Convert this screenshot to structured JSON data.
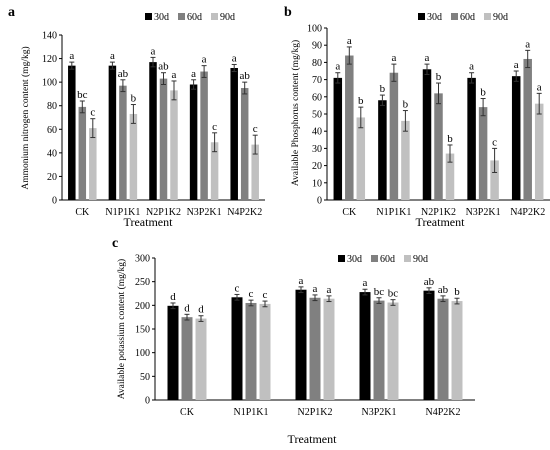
{
  "colors": {
    "30d": "#000000",
    "60d": "#808080",
    "90d": "#c0c0c0"
  },
  "chart_data": [
    {
      "type": "bar",
      "panel_label": "a",
      "categories": [
        "CK",
        "N1P1K1",
        "N2P1K2",
        "N3P2K1",
        "N4P2K2"
      ],
      "series": [
        {
          "name": "30d",
          "values": [
            114,
            114,
            117,
            98,
            112
          ],
          "errors": [
            3,
            3,
            4,
            4,
            3
          ],
          "letters": [
            "a",
            "a",
            "a",
            "a",
            "a"
          ]
        },
        {
          "name": "60d",
          "values": [
            79,
            97,
            103,
            109,
            95
          ],
          "errors": [
            5,
            5,
            5,
            5,
            5
          ],
          "letters": [
            "bc",
            "ab",
            "ab",
            "a",
            "ab"
          ]
        },
        {
          "name": "90d",
          "values": [
            61,
            73,
            93,
            49,
            47
          ],
          "errors": [
            8,
            8,
            8,
            8,
            8
          ],
          "letters": [
            "c",
            "b",
            "a",
            "c",
            "c"
          ]
        }
      ],
      "xlabel": "Treatment",
      "ylabel": "Ammonium nitrogen content (mg/kg)",
      "ylim": [
        0,
        140
      ],
      "yticks": [
        0,
        20,
        40,
        60,
        80,
        100,
        120,
        140
      ],
      "legend": "top-right",
      "grid": false
    },
    {
      "type": "bar",
      "panel_label": "b",
      "categories": [
        "CK",
        "N1P1K1",
        "N2P1K2",
        "N3P2K1",
        "N4P2K2"
      ],
      "series": [
        {
          "name": "30d",
          "values": [
            71,
            58,
            76,
            71,
            72
          ],
          "errors": [
            3,
            3,
            3,
            3,
            3
          ],
          "letters": [
            "a",
            "b",
            "a",
            "a",
            "a"
          ]
        },
        {
          "name": "60d",
          "values": [
            84,
            74,
            62,
            54,
            82
          ],
          "errors": [
            5,
            5,
            6,
            5,
            5
          ],
          "letters": [
            "a",
            "a",
            "b",
            "b",
            "a"
          ]
        },
        {
          "name": "90d",
          "values": [
            48,
            46,
            27,
            23,
            56
          ],
          "errors": [
            6,
            6,
            5,
            7,
            6
          ],
          "letters": [
            "b",
            "b",
            "b",
            "c",
            "a"
          ]
        }
      ],
      "xlabel": "Treatment",
      "ylabel": "Available Phosphorus content (mg/kg)",
      "ylim": [
        0,
        100
      ],
      "yticks": [
        0,
        10,
        20,
        30,
        40,
        50,
        60,
        70,
        80,
        90,
        100
      ],
      "legend": "top-right",
      "grid": false
    },
    {
      "type": "bar",
      "panel_label": "c",
      "categories": [
        "CK",
        "N1P1K1",
        "N2P1K2",
        "N3P2K1",
        "N4P2K2"
      ],
      "series": [
        {
          "name": "30d",
          "values": [
            199,
            217,
            233,
            228,
            231
          ],
          "errors": [
            6,
            6,
            6,
            6,
            6
          ],
          "letters": [
            "d",
            "c",
            "a",
            "a",
            "ab"
          ]
        },
        {
          "name": "60d",
          "values": [
            175,
            205,
            216,
            210,
            214
          ],
          "errors": [
            6,
            6,
            6,
            6,
            6
          ],
          "letters": [
            "d",
            "c",
            "a",
            "bc",
            "ab"
          ]
        },
        {
          "name": "90d",
          "values": [
            172,
            203,
            214,
            206,
            209
          ],
          "errors": [
            6,
            6,
            6,
            6,
            6
          ],
          "letters": [
            "d",
            "c",
            "a",
            "bc",
            "b"
          ]
        }
      ],
      "xlabel": "Treatment",
      "ylabel": "Available potassium content (mg/kg)",
      "ylim": [
        0,
        300
      ],
      "yticks": [
        0,
        50,
        100,
        150,
        200,
        250,
        300
      ],
      "legend": "top-right",
      "grid": false
    }
  ]
}
